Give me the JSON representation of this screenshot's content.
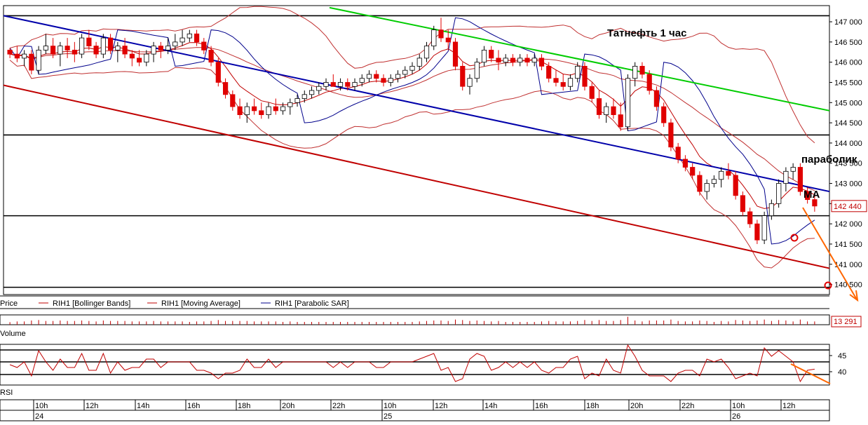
{
  "chart_data": [
    {
      "type": "candlestick",
      "title": "Татнефть    1 час",
      "annotations": [
        "параболик",
        "МА"
      ],
      "last_price": "142 440",
      "ylim": [
        140250,
        147400
      ],
      "ticks": [
        140500,
        141000,
        141500,
        142000,
        142500,
        143000,
        143500,
        144000,
        144500,
        145000,
        145500,
        146000,
        146500,
        147000
      ],
      "tick_labels": [
        "140 500",
        "141 000",
        "141 500",
        "142 000",
        "142 500",
        "143 000",
        "143 500",
        "144 000",
        "144 500",
        "145 000",
        "145 500",
        "146 000",
        "146 500",
        "147 000"
      ],
      "horizontal_levels": [
        147150,
        144200,
        142200,
        140430
      ],
      "legend": [
        {
          "label": "Price",
          "color": "#000000"
        },
        {
          "label": "RIH1 [Bollinger Bands]",
          "color": "#c00000"
        },
        {
          "label": "RIH1 [Moving Average]",
          "color": "#c00000"
        },
        {
          "label": "RIH1 [Parabolic SAR]",
          "color": "#00008b"
        }
      ],
      "colors": {
        "up": "#ffffff",
        "down": "#e00000",
        "bollinger": "#c03030",
        "ma": "#c00000",
        "psar": "#00008b",
        "trend_blue": "#0000aa",
        "trend_red": "#c00000",
        "trend_green": "#00cc00",
        "forecast": "#ff6600"
      },
      "candles": [
        [
          146300,
          146350,
          146100,
          146200
        ],
        [
          146200,
          146400,
          146000,
          146100
        ],
        [
          146100,
          146300,
          145900,
          146200
        ],
        [
          146200,
          146300,
          145700,
          145800
        ],
        [
          145800,
          146400,
          145700,
          146300
        ],
        [
          146300,
          146700,
          146200,
          146400
        ],
        [
          146400,
          146600,
          146100,
          146200
        ],
        [
          146200,
          146500,
          145900,
          146400
        ],
        [
          146400,
          146600,
          146100,
          146300
        ],
        [
          146300,
          146500,
          146000,
          146200
        ],
        [
          146200,
          146700,
          146100,
          146600
        ],
        [
          146600,
          146800,
          146300,
          146400
        ],
        [
          146400,
          146500,
          146100,
          146200
        ],
        [
          146200,
          146700,
          146100,
          146600
        ],
        [
          146600,
          146700,
          146200,
          146300
        ],
        [
          146300,
          146500,
          146000,
          146400
        ],
        [
          146400,
          146600,
          146100,
          146200
        ],
        [
          146200,
          146300,
          145900,
          146100
        ],
        [
          146100,
          146300,
          145900,
          146000
        ],
        [
          146000,
          146300,
          145900,
          146200
        ],
        [
          146200,
          146500,
          146000,
          146400
        ],
        [
          146400,
          146500,
          146100,
          146300
        ],
        [
          146300,
          146600,
          146200,
          146400
        ],
        [
          146400,
          146700,
          146300,
          146500
        ],
        [
          146500,
          146800,
          146400,
          146600
        ],
        [
          146600,
          146800,
          146500,
          146700
        ],
        [
          146700,
          146800,
          146400,
          146500
        ],
        [
          146500,
          146600,
          146200,
          146300
        ],
        [
          146300,
          146400,
          145900,
          146000
        ],
        [
          146000,
          146100,
          145400,
          145500
        ],
        [
          145500,
          145600,
          145100,
          145200
        ],
        [
          145200,
          145300,
          144800,
          144900
        ],
        [
          144900,
          145100,
          144600,
          144700
        ],
        [
          144700,
          145000,
          144500,
          144900
        ],
        [
          144900,
          145100,
          144700,
          144800
        ],
        [
          144800,
          145000,
          144600,
          144700
        ],
        [
          144700,
          145000,
          144600,
          144900
        ],
        [
          144900,
          145100,
          144700,
          144800
        ],
        [
          144800,
          145000,
          144700,
          144900
        ],
        [
          144900,
          145100,
          144700,
          145000
        ],
        [
          145000,
          145200,
          144900,
          145100
        ],
        [
          145100,
          145300,
          145000,
          145200
        ],
        [
          145200,
          145400,
          145100,
          145300
        ],
        [
          145300,
          145500,
          145200,
          145400
        ],
        [
          145400,
          145600,
          145300,
          145500
        ],
        [
          145500,
          145700,
          145400,
          145400
        ],
        [
          145400,
          145600,
          145300,
          145500
        ],
        [
          145500,
          145600,
          145300,
          145400
        ],
        [
          145400,
          145600,
          145300,
          145500
        ],
        [
          145500,
          145700,
          145400,
          145600
        ],
        [
          145600,
          145800,
          145500,
          145700
        ],
        [
          145700,
          145800,
          145500,
          145600
        ],
        [
          145600,
          145700,
          145400,
          145500
        ],
        [
          145500,
          145700,
          145400,
          145600
        ],
        [
          145600,
          145800,
          145500,
          145700
        ],
        [
          145700,
          145900,
          145600,
          145800
        ],
        [
          145800,
          146000,
          145700,
          145900
        ],
        [
          145900,
          146200,
          145800,
          146100
        ],
        [
          146100,
          146500,
          146000,
          146400
        ],
        [
          146400,
          146900,
          146300,
          146800
        ],
        [
          146800,
          147100,
          146500,
          146600
        ],
        [
          146600,
          146800,
          146300,
          146500
        ],
        [
          146500,
          146600,
          145800,
          145900
        ],
        [
          145900,
          146000,
          145300,
          145400
        ],
        [
          145400,
          145700,
          145200,
          145600
        ],
        [
          145600,
          146100,
          145500,
          146000
        ],
        [
          146000,
          146400,
          145900,
          146300
        ],
        [
          146300,
          146400,
          146000,
          146100
        ],
        [
          146100,
          146300,
          145800,
          146000
        ],
        [
          146000,
          146200,
          145900,
          146100
        ],
        [
          146100,
          146200,
          145900,
          146000
        ],
        [
          146000,
          146200,
          145900,
          146100
        ],
        [
          146100,
          146200,
          145900,
          146000
        ],
        [
          146000,
          146200,
          145900,
          146100
        ],
        [
          146100,
          146200,
          145800,
          145900
        ],
        [
          145900,
          146000,
          145500,
          145600
        ],
        [
          145600,
          145800,
          145400,
          145500
        ],
        [
          145500,
          145700,
          145300,
          145400
        ],
        [
          145400,
          145700,
          145300,
          145600
        ],
        [
          145600,
          146000,
          145500,
          145900
        ],
        [
          145900,
          146000,
          145300,
          145400
        ],
        [
          145400,
          145500,
          145000,
          145100
        ],
        [
          145100,
          145300,
          144600,
          144700
        ],
        [
          144700,
          145000,
          144500,
          144900
        ],
        [
          144900,
          145100,
          144600,
          144700
        ],
        [
          144700,
          145000,
          144300,
          144400
        ],
        [
          144400,
          145700,
          144300,
          145600
        ],
        [
          145600,
          146000,
          145400,
          145900
        ],
        [
          145900,
          146000,
          145600,
          145700
        ],
        [
          145700,
          145800,
          145200,
          145300
        ],
        [
          145300,
          145400,
          144800,
          144900
        ],
        [
          144900,
          145000,
          144400,
          144500
        ],
        [
          144500,
          144600,
          143800,
          143900
        ],
        [
          143900,
          144000,
          143500,
          143600
        ],
        [
          143600,
          143700,
          143300,
          143400
        ],
        [
          143400,
          143500,
          143100,
          143200
        ],
        [
          143200,
          143300,
          142700,
          142800
        ],
        [
          142800,
          143100,
          142600,
          143000
        ],
        [
          143000,
          143200,
          142900,
          143100
        ],
        [
          143100,
          143400,
          142900,
          143300
        ],
        [
          143300,
          143500,
          143100,
          143200
        ],
        [
          143200,
          143300,
          142600,
          142700
        ],
        [
          142700,
          142800,
          142200,
          142300
        ],
        [
          142300,
          142400,
          141900,
          142000
        ],
        [
          142000,
          142100,
          141500,
          141600
        ],
        [
          141600,
          142300,
          141500,
          142200
        ],
        [
          142200,
          142600,
          142100,
          142500
        ],
        [
          142500,
          143100,
          142400,
          143000
        ],
        [
          143000,
          143400,
          142800,
          143300
        ],
        [
          143300,
          143500,
          143100,
          143400
        ],
        [
          143400,
          143500,
          142700,
          142800
        ],
        [
          142800,
          142900,
          142500,
          142600
        ],
        [
          142600,
          142700,
          142300,
          142440
        ]
      ],
      "volume": {
        "label": "Volume",
        "last": "13 291"
      },
      "rsi": {
        "label": "RSI",
        "ticks": [
          45,
          40
        ]
      },
      "time_axis": {
        "hours": [
          "10h",
          "12h",
          "14h",
          "16h",
          "18h",
          "20h",
          "22h",
          "10h",
          "12h",
          "14h",
          "16h",
          "18h",
          "20h",
          "22h",
          "10h",
          "12h"
        ],
        "days": [
          "24",
          "25",
          "26"
        ]
      }
    }
  ]
}
